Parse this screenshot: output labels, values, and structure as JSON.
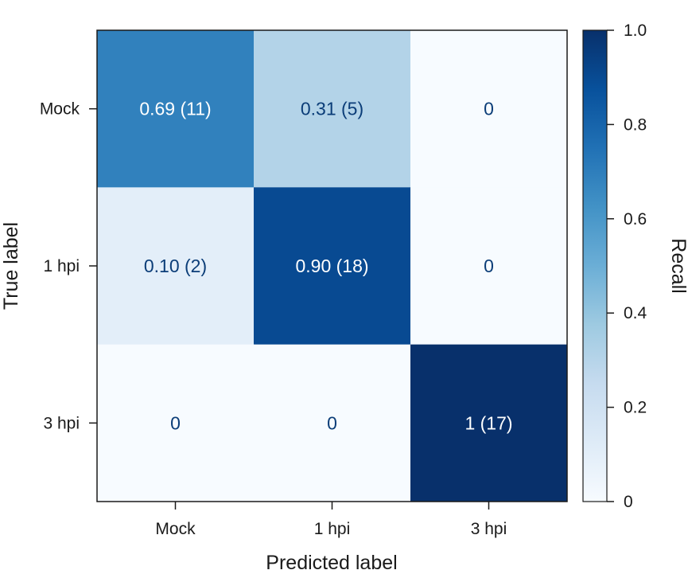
{
  "chart_data": {
    "type": "heatmap",
    "title": "",
    "xlabel": "Predicted label",
    "ylabel": "True label",
    "x_categories": [
      "Mock",
      "1 hpi",
      "3 hpi"
    ],
    "y_categories": [
      "Mock",
      "1 hpi",
      "3 hpi"
    ],
    "values": [
      [
        0.69,
        0.31,
        0.0
      ],
      [
        0.1,
        0.9,
        0.0
      ],
      [
        0.0,
        0.0,
        1.0
      ]
    ],
    "cell_labels": [
      [
        "0.69 (11)",
        "0.31 (5)",
        "0"
      ],
      [
        "0.10 (2)",
        "0.90 (18)",
        "0"
      ],
      [
        "0",
        "0",
        "1 (17)"
      ]
    ],
    "colorbar": {
      "label": "Recall",
      "range": [
        0,
        1.0
      ],
      "ticks": [
        0,
        0.2,
        0.4,
        0.6,
        0.8,
        1.0
      ],
      "tick_labels": [
        "0",
        "0.2",
        "0.4",
        "0.6",
        "0.8",
        "1.0"
      ]
    },
    "colormap": "Blues",
    "colors": {
      "low": "#f7fbff",
      "high": "#08306b",
      "text_dark": "#0b3d78",
      "text_light": "#ffffff",
      "frame": "#1a1a1a"
    }
  }
}
